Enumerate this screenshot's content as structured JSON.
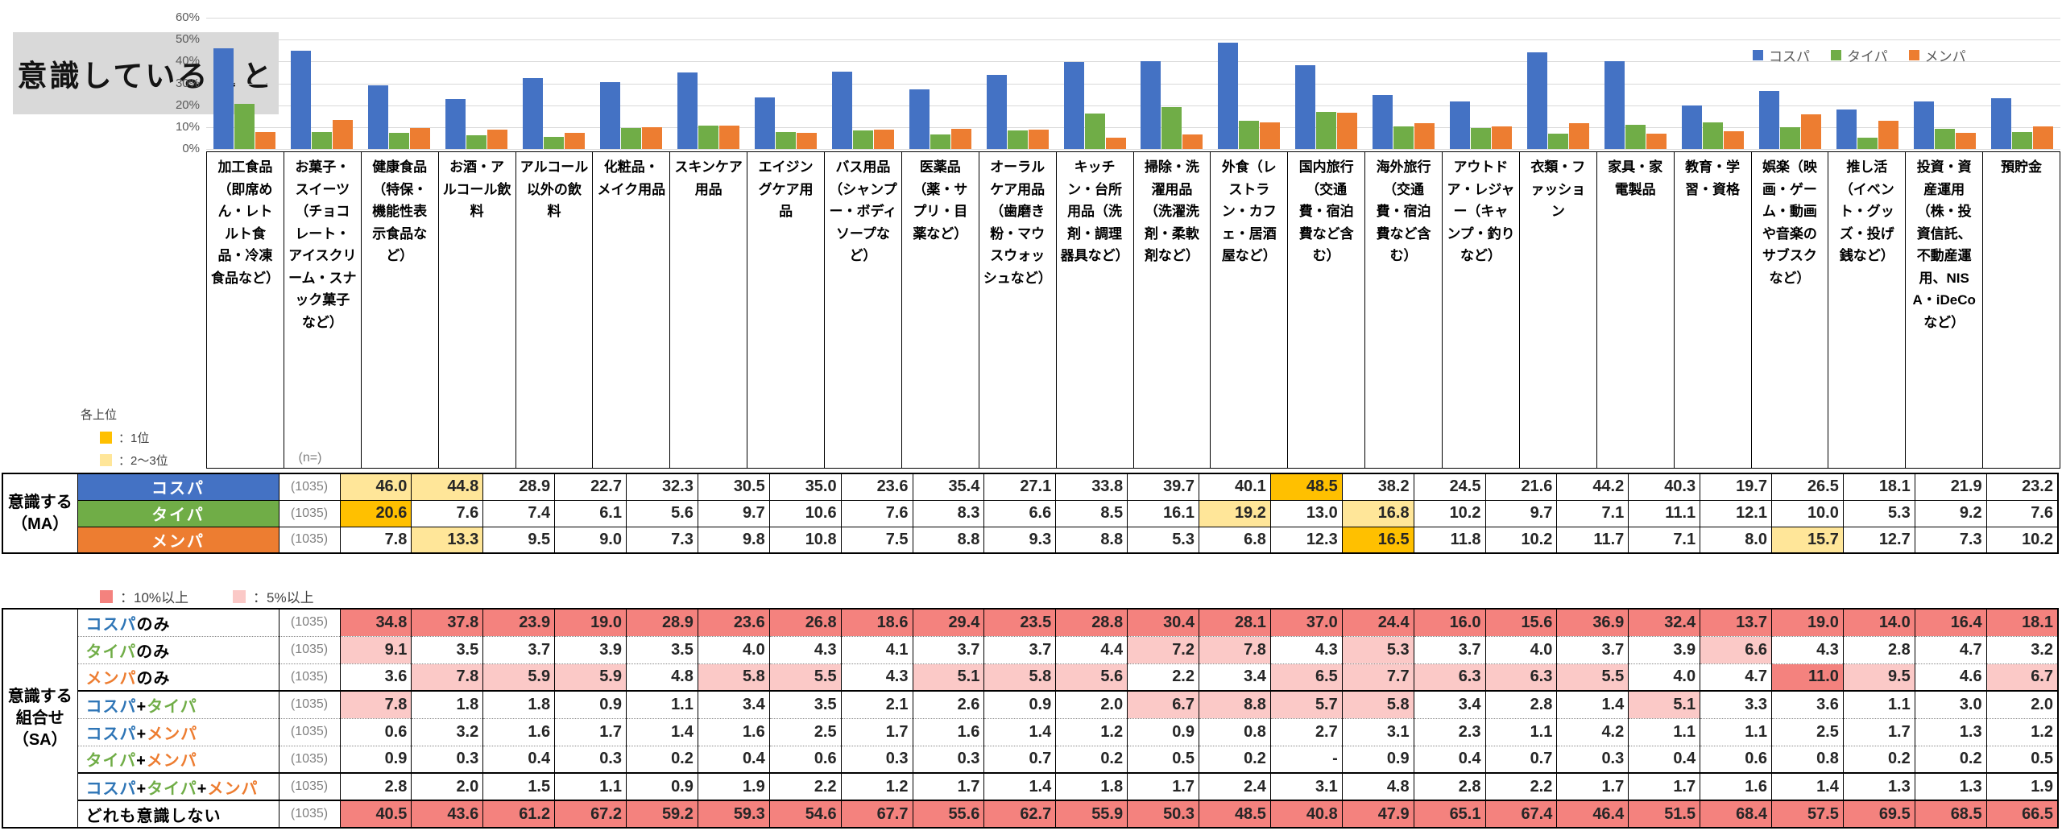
{
  "title": "意識していること",
  "colors": {
    "cospa": "#4472C4",
    "taipa": "#70AD47",
    "menpa": "#ED7D31",
    "rank1": "#FFC000",
    "rank23": "#FFE699",
    "ge10": "#F4827E",
    "ge5": "#FBC9C7",
    "grid": "#D9D9D9",
    "axis_text": "#595959",
    "title_bg": "#D9D9D9"
  },
  "chart_data": {
    "type": "bar",
    "title": "意識していること",
    "categories": [
      "加工食品（即席めん・レトルト食品・冷凍食品など）",
      "お菓子・スイーツ（チョコレート・アイスクリーム・スナック菓子など）",
      "健康食品（特保・機能性表示食品など）",
      "お酒・アルコール飲料",
      "アルコール以外の飲料",
      "化粧品・メイク用品",
      "スキンケア用品",
      "エイジングケア用品",
      "バス用品（シャンプー・ボディソープなど）",
      "医薬品（薬・サプリ・目薬など）",
      "オーラルケア用品（歯磨き粉・マウスウォッシュなど）",
      "キッチン・台所用品（洗剤・調理器具など）",
      "掃除・洗濯用品（洗濯洗剤・柔軟剤など）",
      "外食（レストラン・カフェ・居酒屋など）",
      "国内旅行（交通費・宿泊費など含む）",
      "海外旅行（交通費・宿泊費など含む）",
      "アウトドア・レジャー（キャンプ・釣りなど）",
      "衣類・ファッション",
      "家具・家電製品",
      "教育・学習・資格",
      "娯楽（映画・ゲーム・動画や音楽のサブスクなど）",
      "推し活（イベント・グッズ・投げ銭など）",
      "投資・資産運用（株・投資信託、不動産運用、NISA・iDeCoなど）",
      "預貯金"
    ],
    "series": [
      {
        "name": "コスパ",
        "color": "#4472C4",
        "values": [
          46.0,
          44.8,
          28.9,
          22.7,
          32.3,
          30.5,
          35.0,
          23.6,
          35.4,
          27.1,
          33.8,
          39.7,
          40.1,
          48.5,
          38.2,
          24.5,
          21.6,
          44.2,
          40.3,
          19.7,
          26.5,
          18.1,
          21.9,
          23.2
        ]
      },
      {
        "name": "タイパ",
        "color": "#70AD47",
        "values": [
          20.6,
          7.6,
          7.4,
          6.1,
          5.6,
          9.7,
          10.6,
          7.6,
          8.3,
          6.6,
          8.5,
          16.1,
          19.2,
          13.0,
          16.8,
          10.2,
          9.7,
          7.1,
          11.1,
          12.1,
          10.0,
          5.3,
          9.2,
          7.6
        ]
      },
      {
        "name": "メンパ",
        "color": "#ED7D31",
        "values": [
          7.8,
          13.3,
          9.5,
          9.0,
          7.3,
          9.8,
          10.8,
          7.5,
          8.8,
          9.3,
          8.8,
          5.3,
          6.8,
          12.3,
          16.5,
          11.8,
          10.2,
          11.7,
          7.1,
          8.0,
          15.7,
          12.7,
          7.3,
          10.2
        ]
      }
    ],
    "xlabel": "",
    "ylabel": "",
    "y_ticks": [
      "0%",
      "10%",
      "20%",
      "30%",
      "40%",
      "50%",
      "60%"
    ],
    "ylim": [
      0,
      60
    ],
    "grid": true,
    "legend_position": "top-right"
  },
  "table1": {
    "group_lines": [
      "意識する",
      "（MA）"
    ],
    "legend": {
      "title": "各上位",
      "rank1_label": "：1位",
      "rank23_label": "：2～3位"
    },
    "n_header": "(n=)",
    "n_value": "(1035)",
    "rows": [
      {
        "label": "コスパ",
        "series_index": 0
      },
      {
        "label": "タイパ",
        "series_index": 1
      },
      {
        "label": "メンパ",
        "series_index": 2
      }
    ],
    "highlight_rule": "1位=濃い黄, 2～3位=薄い黄"
  },
  "table2": {
    "group_lines": [
      "意識する",
      "組合せ",
      "（SA）"
    ],
    "legend": {
      "ge10_label": "：10%以上",
      "ge5_label": "：5%以上"
    },
    "n_value": "(1035)",
    "rows": [
      {
        "segments": [
          {
            "text": "コスパ",
            "color": "#2E75B6"
          },
          {
            "text": "のみ",
            "color": "#000000"
          }
        ],
        "values": [
          34.8,
          37.8,
          23.9,
          19.0,
          28.9,
          23.6,
          26.8,
          18.6,
          29.4,
          23.5,
          28.8,
          30.4,
          28.1,
          37.0,
          24.4,
          16.0,
          15.6,
          36.9,
          32.4,
          13.7,
          19.0,
          14.0,
          16.4,
          18.1
        ]
      },
      {
        "segments": [
          {
            "text": "タイパ",
            "color": "#70AD47"
          },
          {
            "text": "のみ",
            "color": "#000000"
          }
        ],
        "values": [
          9.1,
          3.5,
          3.7,
          3.9,
          3.5,
          4.0,
          4.3,
          4.1,
          3.7,
          3.7,
          4.4,
          7.2,
          7.8,
          4.3,
          5.3,
          3.7,
          4.0,
          3.7,
          3.9,
          6.6,
          4.3,
          2.8,
          4.7,
          3.2
        ]
      },
      {
        "segments": [
          {
            "text": "メンパ",
            "color": "#ED7D31"
          },
          {
            "text": "のみ",
            "color": "#000000"
          }
        ],
        "values": [
          3.6,
          7.8,
          5.9,
          5.9,
          4.8,
          5.8,
          5.5,
          4.3,
          5.1,
          5.8,
          5.6,
          2.2,
          3.4,
          6.5,
          7.7,
          6.3,
          6.3,
          5.5,
          4.0,
          4.7,
          11.0,
          9.5,
          4.6,
          6.7
        ]
      },
      {
        "segments": [
          {
            "text": "コスパ",
            "color": "#2E75B6"
          },
          {
            "text": "+",
            "color": "#000000"
          },
          {
            "text": "タイパ",
            "color": "#70AD47"
          }
        ],
        "values": [
          7.8,
          1.8,
          1.8,
          0.9,
          1.1,
          3.4,
          3.5,
          2.1,
          2.6,
          0.9,
          2.0,
          6.7,
          8.8,
          5.7,
          5.8,
          3.4,
          2.8,
          1.4,
          5.1,
          3.3,
          3.6,
          1.1,
          3.0,
          2.0
        ]
      },
      {
        "segments": [
          {
            "text": "コスパ",
            "color": "#2E75B6"
          },
          {
            "text": "+",
            "color": "#000000"
          },
          {
            "text": "メンパ",
            "color": "#ED7D31"
          }
        ],
        "values": [
          0.6,
          3.2,
          1.6,
          1.7,
          1.4,
          1.6,
          2.5,
          1.7,
          1.6,
          1.4,
          1.2,
          0.9,
          0.8,
          2.7,
          3.1,
          2.3,
          1.1,
          4.2,
          1.1,
          1.1,
          2.5,
          1.7,
          1.3,
          1.2
        ]
      },
      {
        "segments": [
          {
            "text": "タイパ",
            "color": "#70AD47"
          },
          {
            "text": "+",
            "color": "#000000"
          },
          {
            "text": "メンパ",
            "color": "#ED7D31"
          }
        ],
        "values": [
          0.9,
          0.3,
          0.4,
          0.3,
          0.2,
          0.4,
          0.6,
          0.3,
          0.3,
          0.7,
          0.2,
          0.5,
          0.2,
          "-",
          0.9,
          0.4,
          0.7,
          0.3,
          0.4,
          0.6,
          0.8,
          0.2,
          0.2,
          0.5
        ]
      },
      {
        "segments": [
          {
            "text": "コスパ",
            "color": "#2E75B6"
          },
          {
            "text": "+",
            "color": "#000000"
          },
          {
            "text": "タイパ",
            "color": "#70AD47"
          },
          {
            "text": "+",
            "color": "#000000"
          },
          {
            "text": "メンパ",
            "color": "#ED7D31"
          }
        ],
        "values": [
          2.8,
          2.0,
          1.5,
          1.1,
          0.9,
          1.9,
          2.2,
          1.2,
          1.7,
          1.4,
          1.8,
          1.7,
          2.4,
          3.1,
          4.8,
          2.8,
          2.2,
          1.7,
          1.7,
          1.6,
          1.4,
          1.3,
          1.3,
          1.9
        ]
      },
      {
        "segments": [
          {
            "text": "どれも意識しない",
            "color": "#000000"
          }
        ],
        "values": [
          40.5,
          43.6,
          61.2,
          67.2,
          59.2,
          59.3,
          54.6,
          67.7,
          55.6,
          62.7,
          55.9,
          50.3,
          48.5,
          40.8,
          47.9,
          65.1,
          67.4,
          46.4,
          51.5,
          68.4,
          57.5,
          69.5,
          68.5,
          66.5
        ]
      }
    ],
    "highlight_rule": "10%以上=濃い赤, 5%以上=薄い赤"
  }
}
